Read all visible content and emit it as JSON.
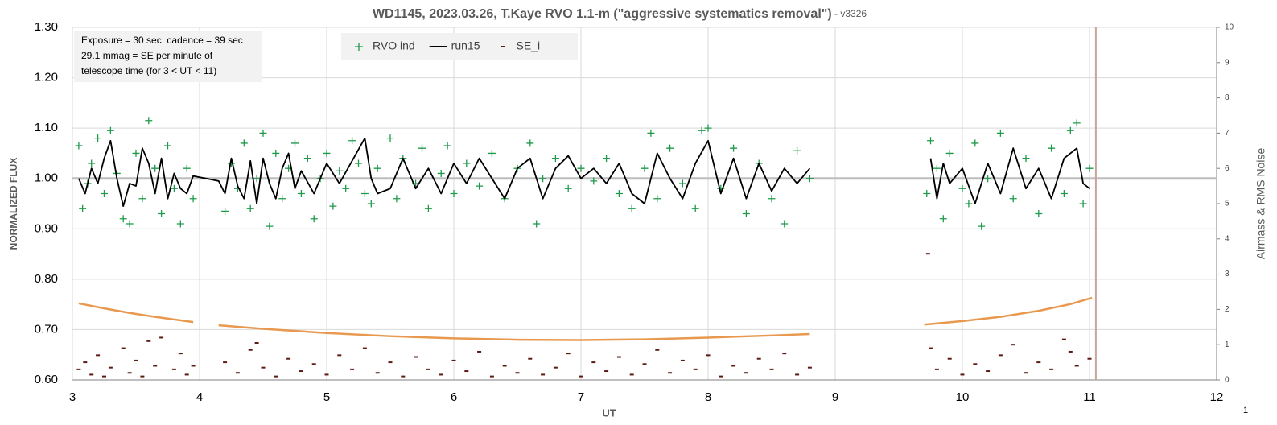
{
  "chart_data": {
    "type": "scatter",
    "title": "WD1145, 2023.03.26, T.Kaye RVO 1.1-m (\"aggressive systematics removal\")",
    "subtitle": " - v3326",
    "x_label": "UT",
    "y_label": "NORMALIZED FLUX",
    "y2_label": "Airmass & RMS Noise",
    "annotation": [
      "Exposure = 30 sec, cadence = 39 sec",
      "29.1 mmag = SE per minute of",
      "telescope time  (for 3 < UT < 11)"
    ],
    "footer": "1",
    "xlim": [
      3,
      12
    ],
    "xticks": [
      3,
      4,
      5,
      6,
      7,
      8,
      9,
      10,
      11,
      12
    ],
    "ylim": [
      0.6,
      1.3
    ],
    "yticks": [
      {
        "value": 0.6,
        "label": "0.60"
      },
      {
        "value": 0.7,
        "label": "0.70"
      },
      {
        "value": 0.8,
        "label": "0.80"
      },
      {
        "value": 0.9,
        "label": "0.90"
      },
      {
        "value": 1.0,
        "label": "1.00"
      },
      {
        "value": 1.1,
        "label": "1.10"
      },
      {
        "value": 1.2,
        "label": "1.20"
      },
      {
        "value": 1.3,
        "label": "1.30"
      }
    ],
    "y2lim": [
      0,
      10
    ],
    "y2ticks": [
      0,
      1,
      2,
      3,
      4,
      5,
      6,
      7,
      8,
      9,
      10
    ],
    "grid": true,
    "hline": {
      "value": 1.0,
      "color": "#bdbdbd"
    },
    "vline": {
      "value": 11.05,
      "color": "#c9a39c"
    },
    "series": [
      {
        "name": "RVO ind",
        "color": "#1f9a4a",
        "marker": "plus",
        "x": [
          3.05,
          3.08,
          3.12,
          3.15,
          3.2,
          3.25,
          3.3,
          3.35,
          3.4,
          3.45,
          3.5,
          3.55,
          3.6,
          3.65,
          3.7,
          3.75,
          3.8,
          3.85,
          3.9,
          3.95,
          4.2,
          4.25,
          4.3,
          4.35,
          4.4,
          4.45,
          4.5,
          4.55,
          4.6,
          4.65,
          4.7,
          4.75,
          4.8,
          4.85,
          4.9,
          4.95,
          5.0,
          5.05,
          5.1,
          5.15,
          5.2,
          5.25,
          5.3,
          5.35,
          5.4,
          5.5,
          5.55,
          5.6,
          5.7,
          5.75,
          5.8,
          5.9,
          5.95,
          6.0,
          6.1,
          6.2,
          6.3,
          6.4,
          6.5,
          6.6,
          6.65,
          6.7,
          6.8,
          6.9,
          7.0,
          7.1,
          7.2,
          7.3,
          7.4,
          7.5,
          7.55,
          7.6,
          7.7,
          7.8,
          7.9,
          7.95,
          8.0,
          8.1,
          8.2,
          8.3,
          8.4,
          8.5,
          8.6,
          8.7,
          8.8,
          9.72,
          9.75,
          9.8,
          9.85,
          9.9,
          10.0,
          10.05,
          10.1,
          10.15,
          10.2,
          10.3,
          10.4,
          10.5,
          10.6,
          10.7,
          10.8,
          10.85,
          10.9,
          10.95,
          11.0
        ],
        "values": [
          1.065,
          0.94,
          0.99,
          1.03,
          1.08,
          0.97,
          1.095,
          1.01,
          0.92,
          0.91,
          1.05,
          0.96,
          1.115,
          1.02,
          0.93,
          1.065,
          0.98,
          0.91,
          1.02,
          0.96,
          0.935,
          1.03,
          0.98,
          1.07,
          0.94,
          1.0,
          1.09,
          0.905,
          1.05,
          0.96,
          1.02,
          1.07,
          0.97,
          1.04,
          0.92,
          1.0,
          1.05,
          0.945,
          1.015,
          0.98,
          1.075,
          1.03,
          0.97,
          0.95,
          1.02,
          1.08,
          0.96,
          1.04,
          0.99,
          1.06,
          0.94,
          1.01,
          1.065,
          0.97,
          1.03,
          0.985,
          1.05,
          0.96,
          1.02,
          1.07,
          0.91,
          1.0,
          1.04,
          0.98,
          1.02,
          0.995,
          1.04,
          0.97,
          0.94,
          1.02,
          1.09,
          0.96,
          1.06,
          0.99,
          0.94,
          1.095,
          1.1,
          0.98,
          1.06,
          0.93,
          1.03,
          0.96,
          0.91,
          1.055,
          1.0,
          0.97,
          1.075,
          1.02,
          0.92,
          1.05,
          0.98,
          0.95,
          1.07,
          0.905,
          1.0,
          1.09,
          0.96,
          1.04,
          0.93,
          1.06,
          0.97,
          1.095,
          1.11,
          0.95,
          1.02
        ]
      },
      {
        "name": "run15",
        "color": "#000000",
        "marker": "line",
        "x": [
          3.05,
          3.1,
          3.15,
          3.2,
          3.25,
          3.3,
          3.35,
          3.4,
          3.45,
          3.5,
          3.55,
          3.6,
          3.65,
          3.7,
          3.75,
          3.8,
          3.85,
          3.9,
          3.95,
          4.15,
          4.2,
          4.25,
          4.3,
          4.35,
          4.4,
          4.45,
          4.5,
          4.55,
          4.6,
          4.65,
          4.7,
          4.75,
          4.8,
          4.9,
          5.0,
          5.1,
          5.2,
          5.3,
          5.35,
          5.4,
          5.5,
          5.6,
          5.7,
          5.8,
          5.9,
          6.0,
          6.1,
          6.2,
          6.3,
          6.4,
          6.5,
          6.6,
          6.7,
          6.8,
          6.9,
          7.0,
          7.1,
          7.2,
          7.3,
          7.4,
          7.5,
          7.6,
          7.7,
          7.8,
          7.9,
          8.0,
          8.1,
          8.2,
          8.3,
          8.4,
          8.5,
          8.6,
          8.7,
          8.8,
          9.0,
          9.75,
          9.8,
          9.85,
          9.9,
          10.0,
          10.1,
          10.2,
          10.3,
          10.4,
          10.5,
          10.6,
          10.7,
          10.8,
          10.9,
          10.95,
          11.0
        ],
        "values": [
          1.0,
          0.97,
          1.02,
          0.99,
          1.04,
          1.075,
          1.0,
          0.945,
          0.99,
          0.985,
          1.06,
          1.03,
          0.97,
          1.04,
          0.96,
          1.01,
          0.98,
          0.97,
          1.005,
          0.995,
          0.97,
          1.04,
          0.985,
          0.96,
          1.035,
          0.95,
          1.04,
          0.99,
          0.96,
          1.02,
          1.05,
          0.98,
          1.015,
          0.97,
          1.03,
          0.99,
          1.035,
          1.08,
          1.0,
          0.97,
          0.98,
          1.04,
          0.98,
          1.02,
          0.97,
          1.03,
          0.99,
          1.04,
          1.0,
          0.96,
          1.02,
          1.04,
          0.96,
          1.02,
          1.045,
          1.0,
          1.02,
          0.99,
          1.03,
          0.97,
          0.95,
          1.05,
          1.0,
          0.96,
          1.03,
          1.075,
          0.97,
          1.04,
          0.96,
          1.03,
          0.975,
          1.02,
          0.99,
          1.02,
          null,
          1.04,
          0.96,
          1.03,
          0.99,
          1.02,
          0.95,
          1.03,
          0.97,
          1.06,
          0.98,
          1.02,
          0.96,
          1.04,
          1.06,
          0.99,
          0.98
        ]
      },
      {
        "name": "SE_i",
        "color": "#5c1a14",
        "marker": "dash",
        "axis": "y2",
        "x": [
          3.05,
          3.1,
          3.15,
          3.2,
          3.25,
          3.3,
          3.4,
          3.45,
          3.5,
          3.55,
          3.6,
          3.65,
          3.7,
          3.8,
          3.85,
          3.9,
          3.95,
          4.2,
          4.3,
          4.4,
          4.45,
          4.5,
          4.6,
          4.7,
          4.8,
          4.9,
          5.0,
          5.1,
          5.2,
          5.3,
          5.4,
          5.5,
          5.6,
          5.7,
          5.8,
          5.9,
          6.0,
          6.1,
          6.2,
          6.3,
          6.4,
          6.5,
          6.6,
          6.7,
          6.8,
          6.9,
          7.0,
          7.1,
          7.2,
          7.3,
          7.4,
          7.5,
          7.6,
          7.7,
          7.8,
          7.9,
          8.0,
          8.1,
          8.2,
          8.3,
          8.4,
          8.5,
          8.6,
          8.7,
          8.8,
          9.73,
          9.75,
          9.8,
          9.9,
          10.0,
          10.1,
          10.2,
          10.3,
          10.4,
          10.5,
          10.6,
          10.7,
          10.8,
          10.85,
          10.9,
          11.0
        ],
        "values": [
          0.3,
          0.5,
          0.15,
          0.7,
          0.1,
          0.35,
          0.9,
          0.2,
          0.55,
          0.1,
          1.1,
          0.4,
          1.2,
          0.3,
          0.75,
          0.15,
          0.4,
          0.5,
          0.2,
          0.85,
          1.05,
          0.35,
          0.1,
          0.6,
          0.25,
          0.45,
          0.15,
          0.7,
          0.3,
          0.9,
          0.2,
          0.5,
          0.1,
          0.65,
          0.3,
          0.15,
          0.55,
          0.25,
          0.8,
          0.1,
          0.4,
          0.2,
          0.6,
          0.15,
          0.35,
          0.75,
          0.1,
          0.5,
          0.25,
          0.65,
          0.15,
          0.45,
          0.85,
          0.2,
          0.55,
          0.3,
          0.7,
          0.1,
          0.4,
          0.2,
          0.6,
          0.3,
          0.75,
          0.15,
          0.35,
          3.58,
          0.9,
          0.3,
          0.6,
          0.15,
          0.45,
          0.25,
          0.7,
          1.0,
          0.2,
          0.5,
          0.3,
          1.15,
          0.8,
          0.4,
          0.6
        ]
      },
      {
        "color": "#e8994f",
        "marker": "line",
        "axis": "y2",
        "x": [
          3.05,
          3.25,
          3.45,
          3.65,
          3.95,
          4.05,
          4.15,
          4.5,
          5.0,
          5.5,
          6.0,
          6.5,
          7.0,
          7.5,
          8.0,
          8.5,
          8.8,
          9.2,
          9.7,
          10.0,
          10.3,
          10.6,
          10.85,
          11.02
        ],
        "values": [
          2.17,
          2.03,
          1.9,
          1.79,
          1.64,
          null,
          1.55,
          1.45,
          1.33,
          1.24,
          1.18,
          1.14,
          1.13,
          1.15,
          1.2,
          1.26,
          1.3,
          null,
          1.57,
          1.67,
          1.79,
          1.96,
          2.15,
          2.33
        ]
      }
    ]
  }
}
